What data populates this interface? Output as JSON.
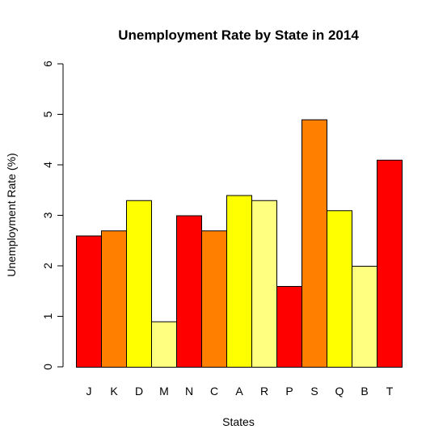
{
  "chart_data": {
    "type": "bar",
    "title": "Unemployment Rate by State in 2014",
    "xlabel": "States",
    "ylabel": "Unemployment Rate (%)",
    "ylim": [
      0,
      6
    ],
    "yticks": [
      0,
      1,
      2,
      3,
      4,
      5,
      6
    ],
    "grid": false,
    "legend": "none",
    "categories": [
      "J",
      "K",
      "D",
      "M",
      "N",
      "C",
      "A",
      "R",
      "P",
      "S",
      "Q",
      "B",
      "T"
    ],
    "values": [
      2.6,
      2.7,
      3.3,
      0.9,
      3.0,
      2.7,
      3.4,
      3.3,
      1.6,
      4.9,
      3.1,
      2.0,
      4.1
    ],
    "colors": [
      "#FF0000",
      "#FF8000",
      "#FFFF00",
      "#FFFF80",
      "#FF0000",
      "#FF8000",
      "#FFFF00",
      "#FFFF80",
      "#FF0000",
      "#FF8000",
      "#FFFF00",
      "#FFFF80",
      "#FF0000"
    ]
  }
}
